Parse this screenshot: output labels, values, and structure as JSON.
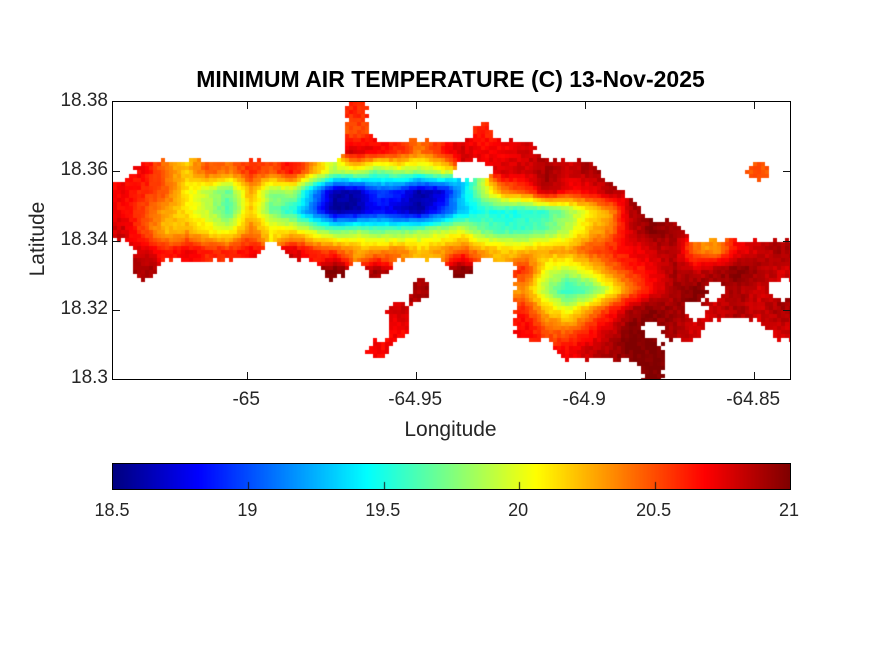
{
  "figure": {
    "background_color": "#ffffff",
    "text_color": "#262626",
    "title_color": "#000000",
    "axis_line_color": "#000000"
  },
  "chart_data": {
    "type": "heatmap",
    "title": "MINIMUM AIR TEMPERATURE (C) 13-Nov-2025",
    "xlabel": "Longitude",
    "ylabel": "Latitude",
    "xlim": [
      -65.0397,
      -64.8394
    ],
    "ylim": [
      18.3,
      18.38
    ],
    "xticks": [
      -65,
      -64.95,
      -64.9,
      -64.85
    ],
    "xtick_labels": [
      "-65",
      "-64.95",
      "-64.9",
      "-64.85"
    ],
    "yticks": [
      18.38,
      18.36,
      18.34,
      18.32,
      18.3
    ],
    "ytick_labels": [
      "18.38",
      "18.36",
      "18.34",
      "18.32",
      "18.3"
    ],
    "grid_lines": false,
    "colormap": "jet",
    "colorbar": {
      "location": "below",
      "orientation": "horizontal",
      "range": [
        18.5,
        21
      ],
      "ticks": [
        18.5,
        19,
        19.5,
        20,
        20.5,
        21
      ],
      "tick_labels": [
        "18.5",
        "19",
        "19.5",
        "20",
        "20.5",
        "21"
      ]
    },
    "grid_note": "Minimum air temperature (C) on a lat/lon grid; rows north to south spanning ylim, cols west to east spanning xlim; null = sea (no data)",
    "grid_values": [
      [
        null,
        null,
        null,
        null,
        null,
        null,
        null,
        null,
        null,
        null,
        null,
        20.6,
        null,
        null,
        null,
        null,
        null,
        null,
        null,
        null,
        null,
        null,
        null,
        null,
        null,
        null,
        null,
        null,
        null,
        null,
        null,
        null
      ],
      [
        null,
        null,
        null,
        null,
        null,
        null,
        null,
        null,
        null,
        null,
        null,
        20.5,
        null,
        null,
        null,
        null,
        null,
        20.6,
        null,
        null,
        null,
        null,
        null,
        null,
        null,
        null,
        null,
        null,
        null,
        null,
        null,
        null
      ],
      [
        null,
        null,
        null,
        null,
        null,
        null,
        null,
        null,
        null,
        null,
        null,
        20.8,
        20.7,
        20.6,
        20.4,
        20.6,
        20.8,
        20.7,
        20.7,
        20.8,
        null,
        null,
        null,
        null,
        null,
        null,
        null,
        null,
        null,
        null,
        null,
        null
      ],
      [
        null,
        20.7,
        20.4,
        20.2,
        20.5,
        20.4,
        20.6,
        20.5,
        20.7,
        20.3,
        19.9,
        20.0,
        19.7,
        19.9,
        19.8,
        20.0,
        null,
        null,
        20.8,
        20.8,
        20.9,
        20.8,
        20.9,
        null,
        null,
        null,
        null,
        null,
        null,
        null,
        20.5,
        null
      ],
      [
        20.7,
        20.6,
        20.5,
        20.1,
        19.9,
        19.7,
        20.3,
        19.8,
        19.9,
        19.2,
        18.6,
        18.6,
        19.0,
        18.9,
        18.6,
        18.7,
        19.3,
        19.9,
        20.4,
        20.5,
        20.9,
        20.7,
        20.7,
        20.9,
        null,
        null,
        null,
        null,
        null,
        null,
        null,
        null
      ],
      [
        20.7,
        20.5,
        20.3,
        20.1,
        19.9,
        19.6,
        20.2,
        19.7,
        19.5,
        19.0,
        18.55,
        18.6,
        18.8,
        18.7,
        18.55,
        18.9,
        19.3,
        19.5,
        19.5,
        19.5,
        19.6,
        19.8,
        20.1,
        20.3,
        20.9,
        null,
        null,
        null,
        null,
        null,
        null,
        null
      ],
      [
        20.8,
        20.5,
        20.2,
        20.3,
        20.1,
        20.0,
        20.4,
        20.1,
        20.1,
        19.9,
        19.7,
        19.8,
        19.7,
        19.7,
        19.8,
        19.9,
        20.0,
        19.7,
        19.6,
        19.6,
        19.7,
        19.9,
        20.2,
        20.4,
        20.8,
        21,
        20.9,
        null,
        null,
        null,
        null,
        null
      ],
      [
        null,
        20.8,
        20.6,
        20.7,
        20.6,
        20.6,
        20.7,
        null,
        20.8,
        20.6,
        20.5,
        20.3,
        20.3,
        20.4,
        20.2,
        20.3,
        20.5,
        20.3,
        20.2,
        20.2,
        20.3,
        20.3,
        20.5,
        20.6,
        20.7,
        20.8,
        20.9,
        20.4,
        20.3,
        20.7,
        20.8,
        20.9
      ],
      [
        null,
        20.9,
        null,
        null,
        null,
        null,
        null,
        null,
        null,
        null,
        21,
        null,
        20.9,
        null,
        null,
        null,
        21,
        null,
        null,
        20.6,
        20.0,
        19.9,
        20.1,
        20.4,
        20.6,
        20.7,
        20.9,
        20.8,
        20.9,
        21,
        20.9,
        20.8
      ],
      [
        null,
        null,
        null,
        null,
        null,
        null,
        null,
        null,
        null,
        null,
        null,
        null,
        null,
        null,
        20.9,
        null,
        null,
        null,
        null,
        20.3,
        19.8,
        19.5,
        19.6,
        20.0,
        20.4,
        20.7,
        20.9,
        21,
        null,
        20.9,
        20.8,
        null
      ],
      [
        null,
        null,
        null,
        null,
        null,
        null,
        null,
        null,
        null,
        null,
        null,
        null,
        null,
        20.8,
        null,
        null,
        null,
        null,
        null,
        20.6,
        20.2,
        20.0,
        20.3,
        20.6,
        20.9,
        21,
        20.9,
        null,
        20.8,
        20.9,
        20.8,
        20.9
      ],
      [
        null,
        null,
        null,
        null,
        null,
        null,
        null,
        null,
        null,
        null,
        null,
        null,
        null,
        20.7,
        null,
        null,
        null,
        null,
        null,
        20.7,
        20.5,
        20.4,
        20.6,
        20.8,
        21,
        null,
        20.9,
        20.8,
        null,
        null,
        null,
        20.8
      ],
      [
        null,
        null,
        null,
        null,
        null,
        null,
        null,
        null,
        null,
        null,
        null,
        null,
        20.7,
        null,
        null,
        null,
        null,
        null,
        null,
        null,
        null,
        20.7,
        20.8,
        20.9,
        21,
        21,
        null,
        null,
        null,
        null,
        null,
        null
      ],
      [
        null,
        null,
        null,
        null,
        null,
        null,
        null,
        null,
        null,
        null,
        null,
        null,
        null,
        null,
        null,
        null,
        null,
        null,
        null,
        null,
        null,
        null,
        null,
        null,
        null,
        21,
        null,
        null,
        null,
        null,
        null,
        null
      ]
    ]
  }
}
